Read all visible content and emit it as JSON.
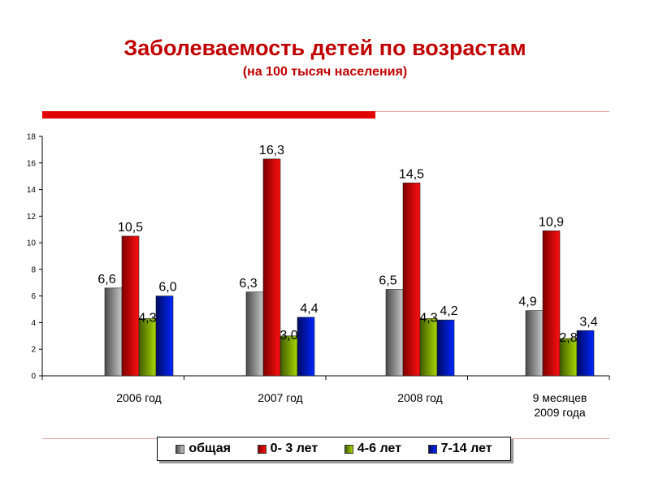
{
  "title": "Заболеваемость детей по возрастам",
  "subtitle": "(на 100 тысяч населения)",
  "colors": {
    "title": "#c00000",
    "accent_rule": "#e00000",
    "series": [
      "#7f7f7f",
      "#e00000",
      "#80b000",
      "#0018c8"
    ]
  },
  "chart_data": {
    "type": "bar",
    "categories": [
      "2006 год",
      "2007 год",
      "2008 год",
      "9 месяцев 2009 года"
    ],
    "series": [
      {
        "name": "общая",
        "values": [
          6.6,
          6.3,
          6.5,
          4.9
        ],
        "labels": [
          "6,6",
          "6,3",
          "6,5",
          "4,9"
        ]
      },
      {
        "name": "0- 3 лет",
        "values": [
          10.5,
          16.3,
          14.5,
          10.9
        ],
        "labels": [
          "10,5",
          "16,3",
          "14,5",
          "10,9"
        ]
      },
      {
        "name": "4-6 лет",
        "values": [
          4.3,
          3.0,
          4.3,
          2.8
        ],
        "labels": [
          "4,3",
          "3,0",
          "4,3",
          "2,8"
        ]
      },
      {
        "name": "7-14 лет",
        "values": [
          6.0,
          4.4,
          4.2,
          3.4
        ],
        "labels": [
          "6,0",
          "4,4",
          "4,2",
          "3,4"
        ]
      }
    ],
    "ylim": [
      0,
      18
    ],
    "yticks": [
      0,
      2,
      4,
      6,
      8,
      10,
      12,
      14,
      16,
      18
    ],
    "grid": false,
    "legend_position": "bottom"
  }
}
